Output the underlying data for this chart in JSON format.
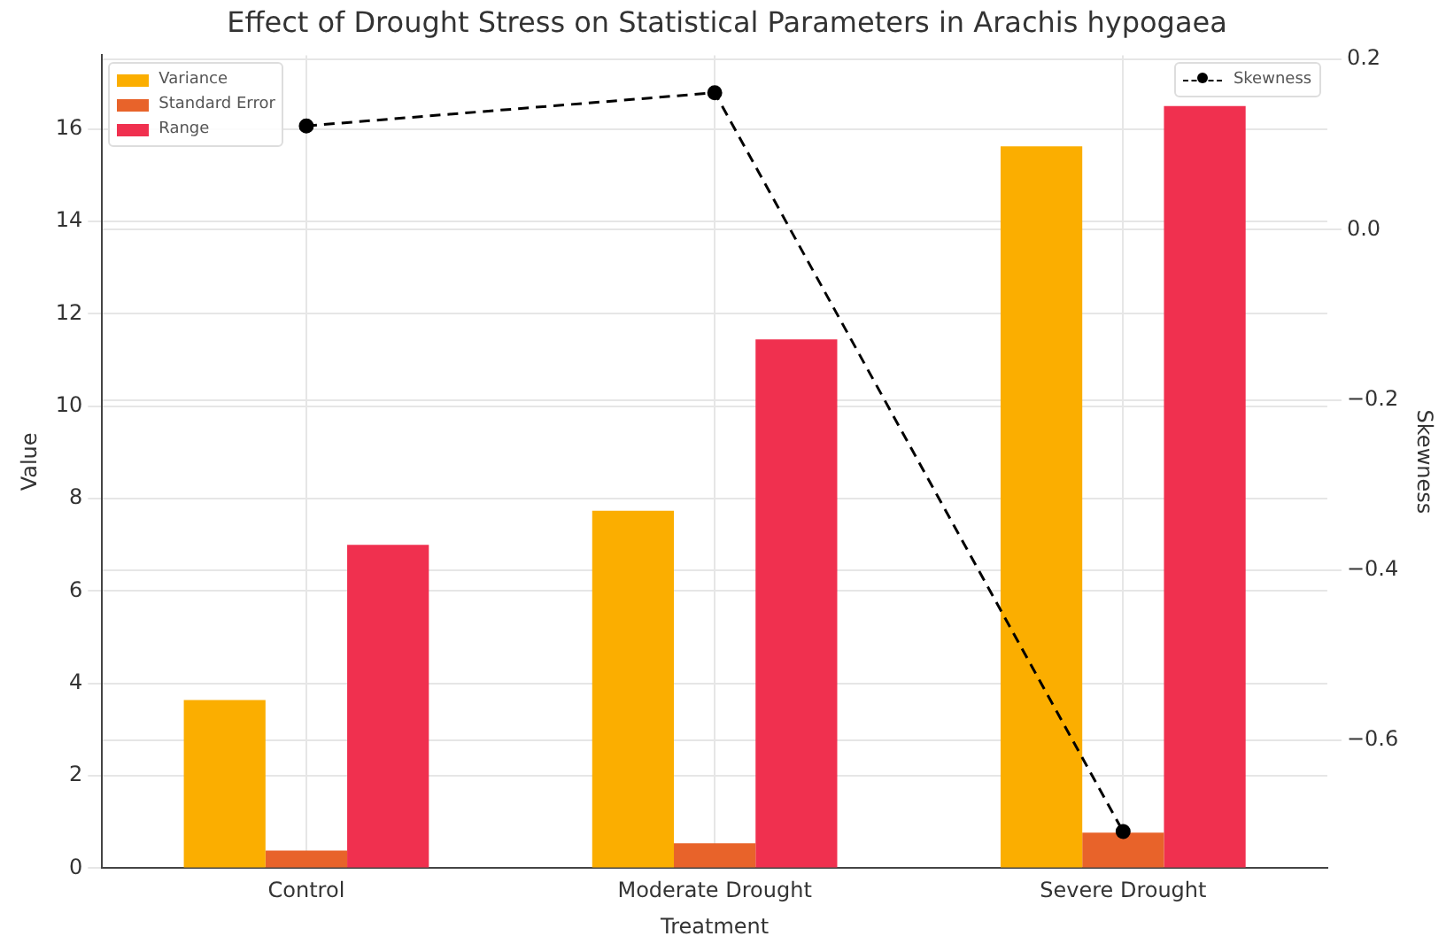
{
  "chart_data": {
    "type": "bar",
    "title": "Effect of Drought Stress on Statistical Parameters in Arachis hypogaea",
    "xlabel": "Treatment",
    "ylabel": "Value",
    "y2label": "Skewness",
    "categories": [
      "Control",
      "Moderate Drought",
      "Severe Drought"
    ],
    "series": [
      {
        "name": "Variance",
        "color": "#fbae00",
        "values": [
          3.64,
          7.74,
          15.63
        ]
      },
      {
        "name": "Standard Error",
        "color": "#e8632a",
        "values": [
          0.38,
          0.54,
          0.77
        ]
      },
      {
        "name": "Range",
        "color": "#f0304f",
        "values": [
          7.0,
          11.45,
          16.5
        ]
      },
      {
        "name": "Skewness",
        "type": "line",
        "axis": "y2",
        "color": "#000000",
        "marker": "circle",
        "line_style": "dashed",
        "values": [
          0.122,
          0.161,
          -0.707
        ]
      }
    ],
    "ylim": [
      0,
      17.6
    ],
    "yticks": [
      0,
      2,
      4,
      6,
      8,
      10,
      12,
      14,
      16
    ],
    "y2lim": [
      -0.75,
      0.205
    ],
    "y2ticks": [
      -0.6,
      -0.4,
      -0.2,
      {
        "value": 0,
        "label": "0.0"
      },
      0.2
    ],
    "grid": true,
    "legend": "top left"
  }
}
